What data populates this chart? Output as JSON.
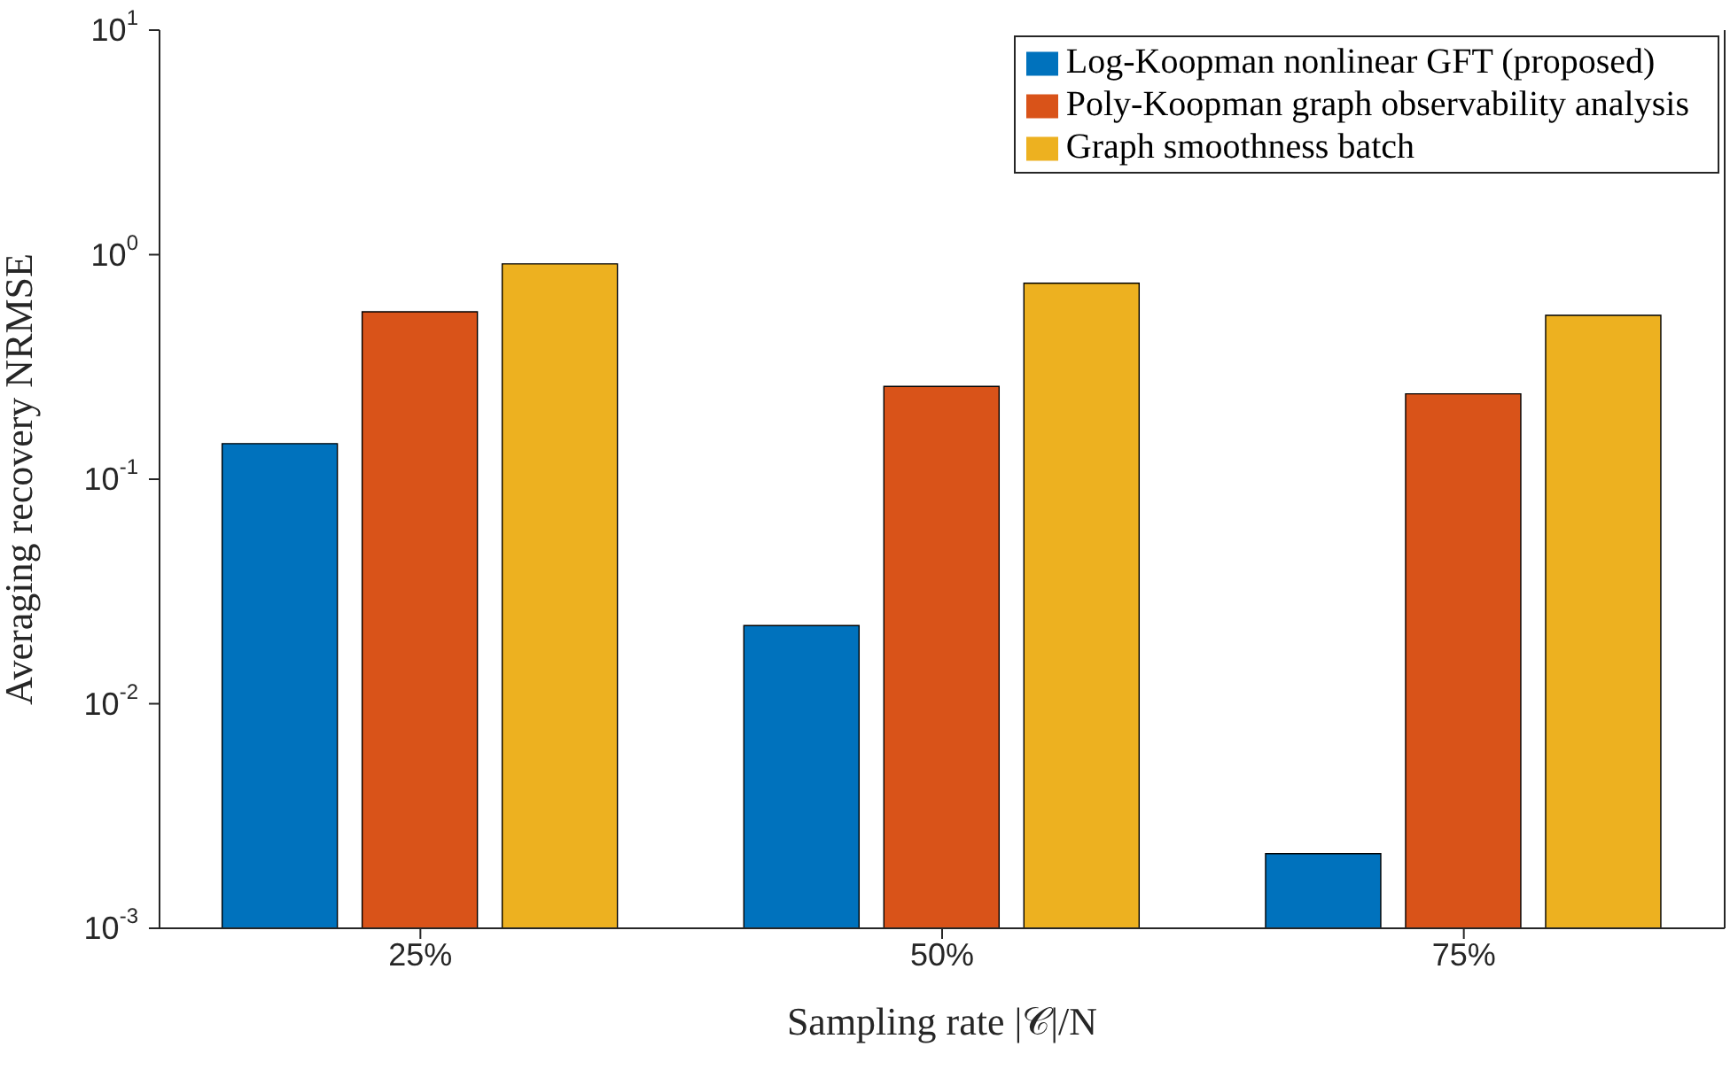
{
  "chart_data": {
    "type": "bar",
    "xlabel": "Sampling rate |𝒞|/N",
    "ylabel": "Averaging recovery NRMSE",
    "categories": [
      "25%",
      "50%",
      "75%"
    ],
    "series": [
      {
        "name": "Log-Koopman nonlinear GFT (proposed)",
        "color": "#0072bd",
        "values": [
          0.144,
          0.0223,
          0.00215
        ]
      },
      {
        "name": "Poly-Koopman graph observability analysis",
        "color": "#d95319",
        "values": [
          0.557,
          0.259,
          0.24
        ]
      },
      {
        "name": "Graph smoothness batch",
        "color": "#edb120",
        "values": [
          0.91,
          0.746,
          0.537
        ]
      }
    ],
    "log": "y",
    "ylim": [
      0.001,
      10
    ],
    "yticks": [
      {
        "value": 0.001,
        "label": "10$^{-3}$"
      },
      {
        "value": 0.01,
        "label": "10$^{-2}$"
      },
      {
        "value": 0.1,
        "label": "10$^{-1}$"
      },
      {
        "value": 1,
        "label": "10$^{0}$"
      },
      {
        "value": 10,
        "label": "10$^{1}$"
      }
    ],
    "grid": false,
    "legend": "top right"
  }
}
